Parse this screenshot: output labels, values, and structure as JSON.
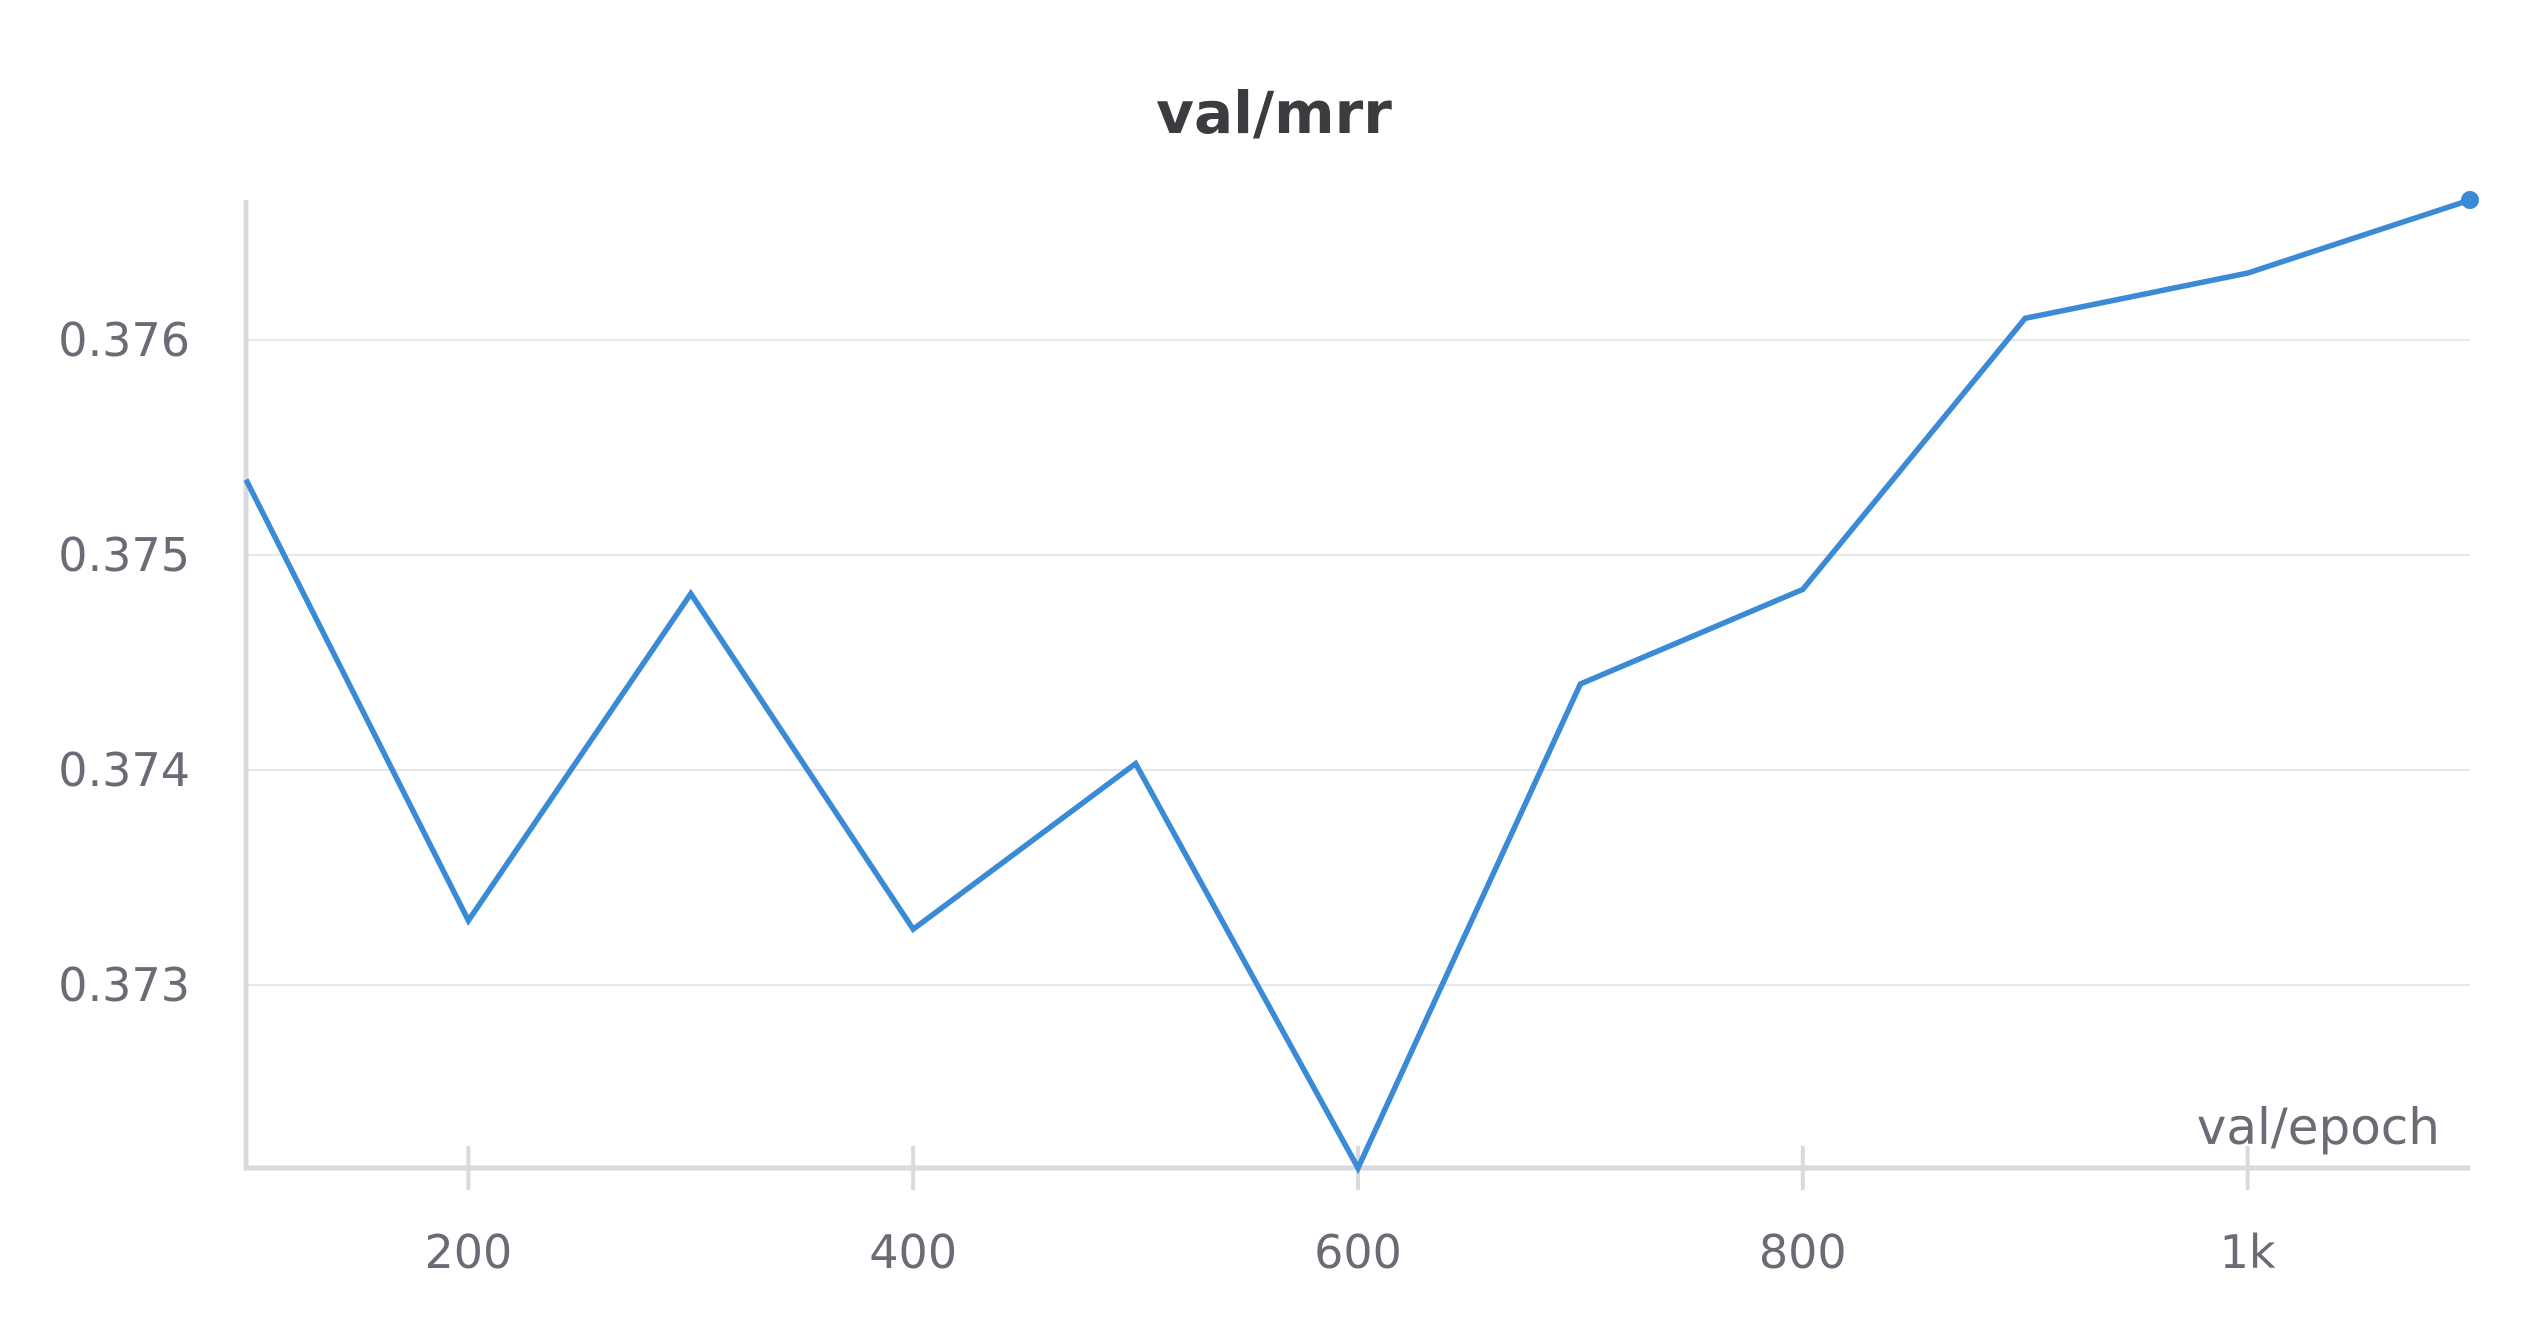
{
  "chart_data": {
    "type": "line",
    "title": "val/mrr",
    "xlabel": "val/epoch",
    "ylabel": "",
    "xlim": [
      100,
      1100
    ],
    "ylim": [
      0.37215,
      0.37665
    ],
    "x_ticks": [
      200,
      400,
      600,
      800,
      1000
    ],
    "x_tick_labels": [
      "200",
      "400",
      "600",
      "800",
      "1k"
    ],
    "y_ticks": [
      0.373,
      0.374,
      0.375,
      0.376
    ],
    "y_tick_labels": [
      "0.373",
      "0.374",
      "0.375",
      "0.376"
    ],
    "grid": "horizontal",
    "legend": "none",
    "series": [
      {
        "color": "#3a8ad6",
        "x": [
          100,
          200,
          300,
          400,
          500,
          600,
          700,
          800,
          900,
          1000,
          1100
        ],
        "y": [
          0.37535,
          0.3733,
          0.37482,
          0.37326,
          0.37403,
          0.37215,
          0.3744,
          0.37484,
          0.3761,
          0.37631,
          0.37665
        ]
      }
    ]
  }
}
